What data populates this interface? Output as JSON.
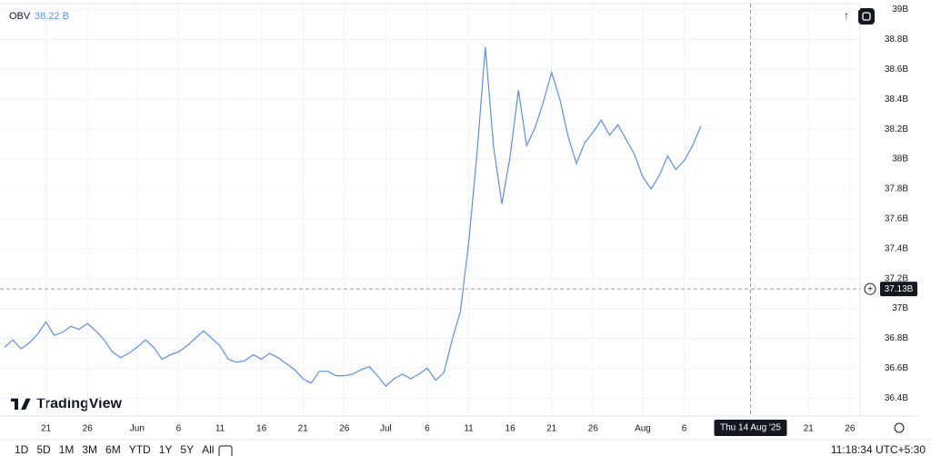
{
  "chart_data": {
    "type": "line",
    "indicator": "OBV",
    "indicator_value": "38.22 B",
    "brand": "TradingView",
    "x": [
      "2025-05-16",
      "2025-05-17",
      "2025-05-18",
      "2025-05-19",
      "2025-05-20",
      "2025-05-21",
      "2025-05-22",
      "2025-05-23",
      "2025-05-24",
      "2025-05-25",
      "2025-05-26",
      "2025-05-27",
      "2025-05-28",
      "2025-05-29",
      "2025-05-30",
      "2025-05-31",
      "2025-06-01",
      "2025-06-02",
      "2025-06-03",
      "2025-06-04",
      "2025-06-05",
      "2025-06-06",
      "2025-06-07",
      "2025-06-08",
      "2025-06-09",
      "2025-06-10",
      "2025-06-11",
      "2025-06-12",
      "2025-06-13",
      "2025-06-14",
      "2025-06-15",
      "2025-06-16",
      "2025-06-17",
      "2025-06-18",
      "2025-06-19",
      "2025-06-20",
      "2025-06-21",
      "2025-06-22",
      "2025-06-23",
      "2025-06-24",
      "2025-06-25",
      "2025-06-26",
      "2025-06-27",
      "2025-06-28",
      "2025-06-29",
      "2025-06-30",
      "2025-07-01",
      "2025-07-02",
      "2025-07-03",
      "2025-07-04",
      "2025-07-05",
      "2025-07-06",
      "2025-07-07",
      "2025-07-08",
      "2025-07-09",
      "2025-07-10",
      "2025-07-11",
      "2025-07-12",
      "2025-07-13",
      "2025-07-14",
      "2025-07-15",
      "2025-07-16",
      "2025-07-17",
      "2025-07-18",
      "2025-07-19",
      "2025-07-20",
      "2025-07-21",
      "2025-07-22",
      "2025-07-23",
      "2025-07-24",
      "2025-07-25",
      "2025-07-26",
      "2025-07-27",
      "2025-07-28",
      "2025-07-29",
      "2025-07-30",
      "2025-07-31",
      "2025-08-01",
      "2025-08-02",
      "2025-08-03",
      "2025-08-04",
      "2025-08-05",
      "2025-08-06",
      "2025-08-07",
      "2025-08-08"
    ],
    "series": [
      {
        "name": "OBV",
        "color": "#5b8def",
        "values": [
          36.74,
          36.79,
          36.73,
          36.77,
          36.83,
          36.91,
          36.82,
          36.84,
          36.88,
          36.86,
          36.9,
          36.85,
          36.79,
          36.71,
          36.67,
          36.7,
          36.74,
          36.79,
          36.74,
          36.66,
          36.69,
          36.71,
          36.75,
          36.8,
          36.85,
          36.8,
          36.75,
          36.66,
          36.64,
          36.65,
          36.69,
          36.66,
          36.7,
          36.67,
          36.63,
          36.59,
          36.53,
          36.5,
          36.58,
          36.58,
          36.55,
          36.55,
          36.56,
          36.59,
          36.61,
          36.55,
          36.48,
          36.53,
          36.56,
          36.53,
          36.56,
          36.6,
          36.52,
          36.57,
          36.79,
          36.98,
          37.44,
          38.03,
          38.75,
          38.08,
          37.7,
          38.02,
          38.46,
          38.09,
          38.21,
          38.38,
          38.58,
          38.4,
          38.15,
          37.97,
          38.11,
          38.18,
          38.26,
          38.16,
          38.23,
          38.13,
          38.03,
          37.88,
          37.8,
          37.89,
          38.02,
          37.93,
          37.99,
          38.09,
          38.22
        ]
      }
    ],
    "xlim": [
      "2025-05-16",
      "2025-08-27"
    ],
    "xticks": [
      {
        "value": "2025-05-21",
        "label": "21"
      },
      {
        "value": "2025-05-26",
        "label": "26"
      },
      {
        "value": "2025-06-01",
        "label": "Jun"
      },
      {
        "value": "2025-06-06",
        "label": "6"
      },
      {
        "value": "2025-06-11",
        "label": "11"
      },
      {
        "value": "2025-06-16",
        "label": "16"
      },
      {
        "value": "2025-06-21",
        "label": "21"
      },
      {
        "value": "2025-06-26",
        "label": "26"
      },
      {
        "value": "2025-07-01",
        "label": "Jul"
      },
      {
        "value": "2025-07-06",
        "label": "6"
      },
      {
        "value": "2025-07-11",
        "label": "11"
      },
      {
        "value": "2025-07-16",
        "label": "16"
      },
      {
        "value": "2025-07-21",
        "label": "21"
      },
      {
        "value": "2025-07-26",
        "label": "26"
      },
      {
        "value": "2025-08-01",
        "label": "Aug"
      },
      {
        "value": "2025-08-06",
        "label": "6"
      },
      {
        "value": "2025-08-21",
        "label": "21"
      },
      {
        "value": "2025-08-26",
        "label": "26"
      }
    ],
    "ylim": [
      36.28,
      39.04
    ],
    "yticks": [
      {
        "value": 36.4,
        "label": "36.4B"
      },
      {
        "value": 36.6,
        "label": "36.6B"
      },
      {
        "value": 36.8,
        "label": "36.8B"
      },
      {
        "value": 37,
        "label": "37B"
      },
      {
        "value": 37.2,
        "label": "37.2B"
      },
      {
        "value": 37.4,
        "label": "37.4B"
      },
      {
        "value": 37.6,
        "label": "37.6B"
      },
      {
        "value": 37.8,
        "label": "37.8B"
      },
      {
        "value": 38,
        "label": "38B"
      },
      {
        "value": 38.2,
        "label": "38.2B"
      },
      {
        "value": 38.4,
        "label": "38.4B"
      },
      {
        "value": 38.6,
        "label": "38.6B"
      },
      {
        "value": 38.8,
        "label": "38.8B"
      },
      {
        "value": 39,
        "label": "39B"
      }
    ],
    "grid": true,
    "crosshair": {
      "x": "2025-08-14",
      "x_label": "Thu 14 Aug '25",
      "y": 37.13,
      "y_label": "37.13B"
    },
    "ranges": [
      "1D",
      "5D",
      "1M",
      "3M",
      "6M",
      "YTD",
      "1Y",
      "5Y",
      "All"
    ],
    "clock": "11:18:34 UTC+5:30"
  }
}
